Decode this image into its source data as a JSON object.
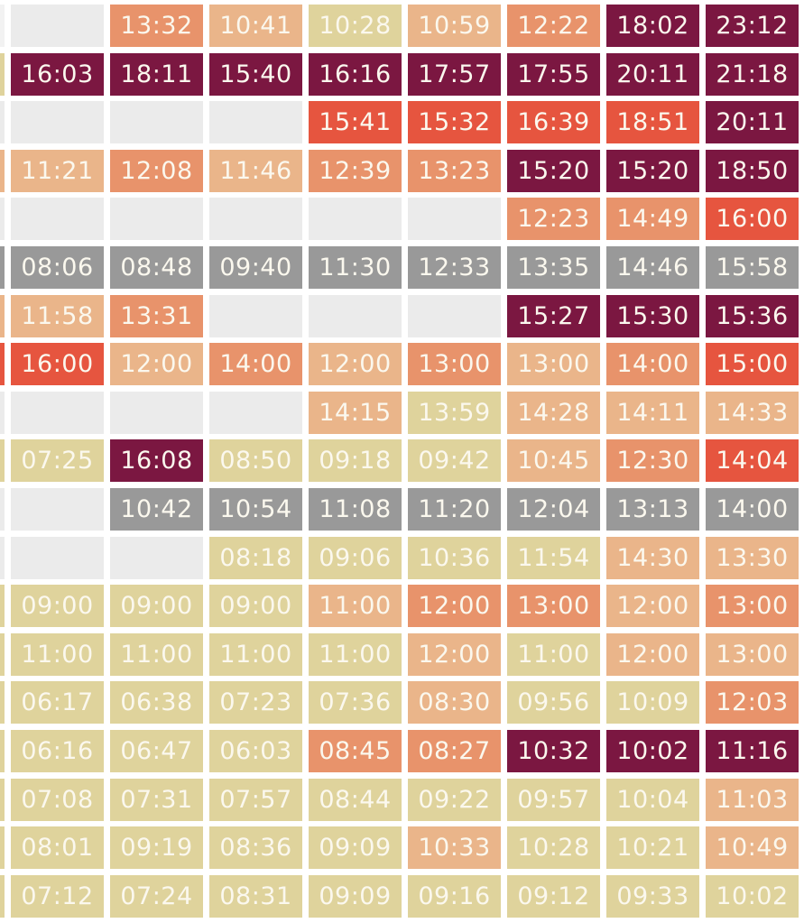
{
  "table": {
    "rows": [
      {
        "edge": "#f2f2f2",
        "cells": [
          {
            "color": "#ebebeb"
          },
          {
            "text": "13:32",
            "color": "#e8936b"
          },
          {
            "text": "10:41",
            "color": "#eab58a"
          },
          {
            "text": "10:28",
            "color": "#dfd39c"
          },
          {
            "text": "10:59",
            "color": "#eab58a"
          },
          {
            "text": "12:22",
            "color": "#e8936b"
          },
          {
            "text": "18:02",
            "color": "#7b1741"
          },
          {
            "text": "23:12",
            "color": "#7b1741"
          }
        ]
      },
      {
        "edge": "#dfd39c",
        "cells": [
          {
            "text": "16:03",
            "color": "#7b1741"
          },
          {
            "text": "18:11",
            "color": "#7b1741"
          },
          {
            "text": "15:40",
            "color": "#7b1741"
          },
          {
            "text": "16:16",
            "color": "#7b1741"
          },
          {
            "text": "17:57",
            "color": "#7b1741"
          },
          {
            "text": "17:55",
            "color": "#7b1741"
          },
          {
            "text": "20:11",
            "color": "#7b1741"
          },
          {
            "text": "21:18",
            "color": "#7b1741"
          }
        ]
      },
      {
        "edge": "#ebebeb",
        "cells": [
          {
            "color": "#ebebeb"
          },
          {
            "color": "#ebebeb"
          },
          {
            "color": "#ebebeb"
          },
          {
            "text": "15:41",
            "color": "#e6553f"
          },
          {
            "text": "15:32",
            "color": "#e6553f"
          },
          {
            "text": "16:39",
            "color": "#e6553f"
          },
          {
            "text": "18:51",
            "color": "#e6553f"
          },
          {
            "text": "20:11",
            "color": "#7b1741"
          }
        ]
      },
      {
        "edge": "#eab58a",
        "cells": [
          {
            "text": "11:21",
            "color": "#eab58a"
          },
          {
            "text": "12:08",
            "color": "#e8936b"
          },
          {
            "text": "11:46",
            "color": "#eab58a"
          },
          {
            "text": "12:39",
            "color": "#e8936b"
          },
          {
            "text": "13:23",
            "color": "#e8936b"
          },
          {
            "text": "15:20",
            "color": "#7b1741"
          },
          {
            "text": "15:20",
            "color": "#7b1741"
          },
          {
            "text": "18:50",
            "color": "#7b1741"
          }
        ]
      },
      {
        "edge": "#ebebeb",
        "cells": [
          {
            "color": "#ebebeb"
          },
          {
            "color": "#ebebeb"
          },
          {
            "color": "#ebebeb"
          },
          {
            "color": "#ebebeb"
          },
          {
            "color": "#ebebeb"
          },
          {
            "text": "12:23",
            "color": "#e8936b"
          },
          {
            "text": "14:49",
            "color": "#e8936b"
          },
          {
            "text": "16:00",
            "color": "#e6553f"
          }
        ]
      },
      {
        "edge": "#999999",
        "cells": [
          {
            "text": "08:06",
            "color": "#999999"
          },
          {
            "text": "08:48",
            "color": "#999999"
          },
          {
            "text": "09:40",
            "color": "#999999"
          },
          {
            "text": "11:30",
            "color": "#999999"
          },
          {
            "text": "12:33",
            "color": "#999999"
          },
          {
            "text": "13:35",
            "color": "#999999"
          },
          {
            "text": "14:46",
            "color": "#999999"
          },
          {
            "text": "15:58",
            "color": "#999999"
          }
        ]
      },
      {
        "edge": "#eab58a",
        "cells": [
          {
            "text": "11:58",
            "color": "#eab58a"
          },
          {
            "text": "13:31",
            "color": "#e8936b"
          },
          {
            "color": "#ebebeb"
          },
          {
            "color": "#ebebeb"
          },
          {
            "color": "#ebebeb"
          },
          {
            "text": "15:27",
            "color": "#7b1741"
          },
          {
            "text": "15:30",
            "color": "#7b1741"
          },
          {
            "text": "15:36",
            "color": "#7b1741"
          }
        ]
      },
      {
        "edge": "#e6553f",
        "cells": [
          {
            "text": "16:00",
            "color": "#e6553f"
          },
          {
            "text": "12:00",
            "color": "#eab58a"
          },
          {
            "text": "14:00",
            "color": "#e8936b"
          },
          {
            "text": "12:00",
            "color": "#eab58a"
          },
          {
            "text": "13:00",
            "color": "#e8936b"
          },
          {
            "text": "13:00",
            "color": "#eab58a"
          },
          {
            "text": "14:00",
            "color": "#e8936b"
          },
          {
            "text": "15:00",
            "color": "#e6553f"
          }
        ]
      },
      {
        "edge": "#ebebeb",
        "cells": [
          {
            "color": "#ebebeb"
          },
          {
            "color": "#ebebeb"
          },
          {
            "color": "#ebebeb"
          },
          {
            "text": "14:15",
            "color": "#eab58a"
          },
          {
            "text": "13:59",
            "color": "#dfd39c"
          },
          {
            "text": "14:28",
            "color": "#eab58a"
          },
          {
            "text": "14:11",
            "color": "#eab58a"
          },
          {
            "text": "14:33",
            "color": "#eab58a"
          }
        ]
      },
      {
        "edge": "#dfd39c",
        "cells": [
          {
            "text": "07:25",
            "color": "#dfd39c"
          },
          {
            "text": "16:08",
            "color": "#7b1741"
          },
          {
            "text": "08:50",
            "color": "#dfd39c"
          },
          {
            "text": "09:18",
            "color": "#dfd39c"
          },
          {
            "text": "09:42",
            "color": "#dfd39c"
          },
          {
            "text": "10:45",
            "color": "#eab58a"
          },
          {
            "text": "12:30",
            "color": "#e8936b"
          },
          {
            "text": "14:04",
            "color": "#e6553f"
          }
        ]
      },
      {
        "edge": "#ebebeb",
        "cells": [
          {
            "color": "#ebebeb"
          },
          {
            "text": "10:42",
            "color": "#999999"
          },
          {
            "text": "10:54",
            "color": "#999999"
          },
          {
            "text": "11:08",
            "color": "#999999"
          },
          {
            "text": "11:20",
            "color": "#999999"
          },
          {
            "text": "12:04",
            "color": "#999999"
          },
          {
            "text": "13:13",
            "color": "#999999"
          },
          {
            "text": "14:00",
            "color": "#999999"
          }
        ]
      },
      {
        "edge": "#ebebeb",
        "cells": [
          {
            "color": "#ebebeb"
          },
          {
            "color": "#ebebeb"
          },
          {
            "text": "08:18",
            "color": "#dfd39c"
          },
          {
            "text": "09:06",
            "color": "#dfd39c"
          },
          {
            "text": "10:36",
            "color": "#dfd39c"
          },
          {
            "text": "11:54",
            "color": "#dfd39c"
          },
          {
            "text": "14:30",
            "color": "#eab58a"
          },
          {
            "text": "13:30",
            "color": "#eab58a"
          }
        ]
      },
      {
        "edge": "#dfd39c",
        "cells": [
          {
            "text": "09:00",
            "color": "#dfd39c"
          },
          {
            "text": "09:00",
            "color": "#dfd39c"
          },
          {
            "text": "09:00",
            "color": "#dfd39c"
          },
          {
            "text": "11:00",
            "color": "#eab58a"
          },
          {
            "text": "12:00",
            "color": "#e8936b"
          },
          {
            "text": "13:00",
            "color": "#e8936b"
          },
          {
            "text": "12:00",
            "color": "#eab58a"
          },
          {
            "text": "13:00",
            "color": "#e8936b"
          }
        ]
      },
      {
        "edge": "#dfd39c",
        "cells": [
          {
            "text": "11:00",
            "color": "#dfd39c"
          },
          {
            "text": "11:00",
            "color": "#dfd39c"
          },
          {
            "text": "11:00",
            "color": "#dfd39c"
          },
          {
            "text": "11:00",
            "color": "#dfd39c"
          },
          {
            "text": "12:00",
            "color": "#eab58a"
          },
          {
            "text": "11:00",
            "color": "#dfd39c"
          },
          {
            "text": "12:00",
            "color": "#eab58a"
          },
          {
            "text": "13:00",
            "color": "#eab58a"
          }
        ]
      },
      {
        "edge": "#dfd39c",
        "cells": [
          {
            "text": "06:17",
            "color": "#dfd39c"
          },
          {
            "text": "06:38",
            "color": "#dfd39c"
          },
          {
            "text": "07:23",
            "color": "#dfd39c"
          },
          {
            "text": "07:36",
            "color": "#dfd39c"
          },
          {
            "text": "08:30",
            "color": "#eab58a"
          },
          {
            "text": "09:56",
            "color": "#dfd39c"
          },
          {
            "text": "10:09",
            "color": "#dfd39c"
          },
          {
            "text": "12:03",
            "color": "#e8936b"
          }
        ]
      },
      {
        "edge": "#dfd39c",
        "cells": [
          {
            "text": "06:16",
            "color": "#dfd39c"
          },
          {
            "text": "06:47",
            "color": "#dfd39c"
          },
          {
            "text": "06:03",
            "color": "#dfd39c"
          },
          {
            "text": "08:45",
            "color": "#e8936b"
          },
          {
            "text": "08:27",
            "color": "#e8936b"
          },
          {
            "text": "10:32",
            "color": "#7b1741"
          },
          {
            "text": "10:02",
            "color": "#7b1741"
          },
          {
            "text": "11:16",
            "color": "#7b1741"
          }
        ]
      },
      {
        "edge": "#dfd39c",
        "cells": [
          {
            "text": "07:08",
            "color": "#dfd39c"
          },
          {
            "text": "07:31",
            "color": "#dfd39c"
          },
          {
            "text": "07:57",
            "color": "#dfd39c"
          },
          {
            "text": "08:44",
            "color": "#dfd39c"
          },
          {
            "text": "09:22",
            "color": "#dfd39c"
          },
          {
            "text": "09:57",
            "color": "#dfd39c"
          },
          {
            "text": "10:04",
            "color": "#dfd39c"
          },
          {
            "text": "11:03",
            "color": "#eab58a"
          }
        ]
      },
      {
        "edge": "#dfd39c",
        "cells": [
          {
            "text": "08:01",
            "color": "#dfd39c"
          },
          {
            "text": "09:19",
            "color": "#dfd39c"
          },
          {
            "text": "08:36",
            "color": "#dfd39c"
          },
          {
            "text": "09:09",
            "color": "#dfd39c"
          },
          {
            "text": "10:33",
            "color": "#eab58a"
          },
          {
            "text": "10:28",
            "color": "#dfd39c"
          },
          {
            "text": "10:21",
            "color": "#dfd39c"
          },
          {
            "text": "10:49",
            "color": "#eab58a"
          }
        ]
      },
      {
        "edge": "#dfd39c",
        "cells": [
          {
            "text": "07:12",
            "color": "#dfd39c"
          },
          {
            "text": "07:24",
            "color": "#dfd39c"
          },
          {
            "text": "08:31",
            "color": "#dfd39c"
          },
          {
            "text": "09:09",
            "color": "#dfd39c"
          },
          {
            "text": "09:16",
            "color": "#dfd39c"
          },
          {
            "text": "09:12",
            "color": "#dfd39c"
          },
          {
            "text": "09:33",
            "color": "#dfd39c"
          },
          {
            "text": "10:02",
            "color": "#dfd39c"
          }
        ]
      }
    ]
  }
}
